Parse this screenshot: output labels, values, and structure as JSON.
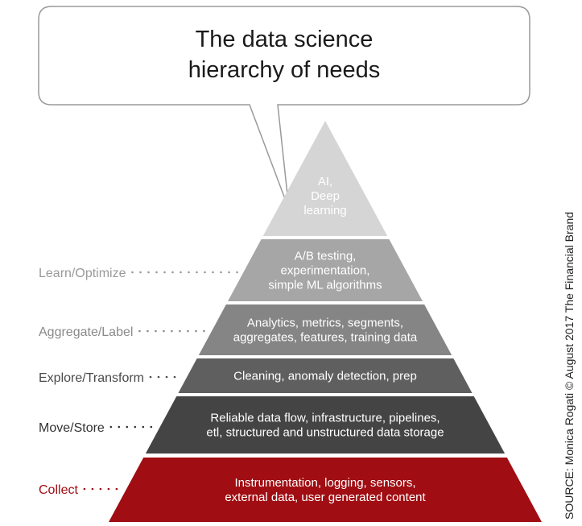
{
  "title": [
    "The data science",
    "hierarchy of needs"
  ],
  "source": "SOURCE: Monica Rogati © August 2017 The Financial Brand",
  "tiers": [
    {
      "label": "",
      "lines": [
        "AI,",
        "Deep",
        "learning"
      ],
      "color": "#d5d5d5",
      "text_color": "#333333"
    },
    {
      "label": "Learn/Optimize",
      "lines": [
        "A/B testing,",
        "experimentation,",
        "simple ML algorithms"
      ],
      "color": "#a6a6a6",
      "text_color": "#ffffff",
      "label_color": "#9a9a9a"
    },
    {
      "label": "Aggregate/Label",
      "lines": [
        "Analytics, metrics, segments,",
        "aggregates, features, training data"
      ],
      "color": "#858585",
      "text_color": "#ffffff",
      "label_color": "#8a8a8a"
    },
    {
      "label": "Explore/Transform",
      "lines": [
        "Cleaning, anomaly detection, prep"
      ],
      "color": "#5f5f5f",
      "text_color": "#ffffff",
      "label_color": "#4a4a4a"
    },
    {
      "label": "Move/Store",
      "lines": [
        "Reliable data flow, infrastructure, pipelines,",
        "etl, structured and unstructured data storage"
      ],
      "color": "#444444",
      "text_color": "#ffffff",
      "label_color": "#333333"
    },
    {
      "label": "Collect",
      "lines": [
        "Instrumentation, logging, sensors,",
        "external data, user generated content"
      ],
      "color": "#a00d12",
      "text_color": "#ffffff",
      "label_color": "#a00d12"
    }
  ]
}
